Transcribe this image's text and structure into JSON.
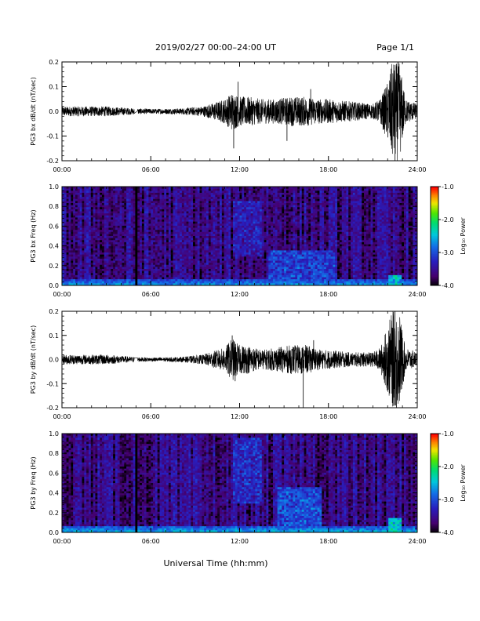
{
  "header": {
    "title": "2019/02/27  00:00–24:00 UT",
    "page": "Page 1/1"
  },
  "xlabel": "Universal Time (hh:mm)",
  "colorbar": {
    "label": "Log₁₀ Power",
    "range": [
      -4.0,
      -1.0
    ],
    "ticks": [
      "-1.0",
      "-2.0",
      "-3.0",
      "-4.0"
    ]
  },
  "chart_data": [
    {
      "type": "line",
      "ylabel": "PG3 bx dB/dt (nT/sec)",
      "xlim": [
        0,
        24
      ],
      "ylim": [
        -0.2,
        0.2
      ],
      "xticks": [
        "00:00",
        "06:00",
        "12:00",
        "18:00",
        "24:00"
      ],
      "yticks": [
        "0.2",
        "0.1",
        "0.0",
        "-0.1",
        "-0.2"
      ],
      "gap": [
        4.9,
        5.1
      ],
      "envelope": {
        "x": [
          0,
          3,
          5,
          6,
          8,
          9.5,
          11,
          11.5,
          12,
          12.5,
          13.5,
          14.5,
          15.5,
          16.5,
          17.5,
          18,
          19.5,
          21,
          21.5,
          22,
          22.3,
          22.8,
          23.2,
          24
        ],
        "amp": [
          0.02,
          0.02,
          0.012,
          0.01,
          0.012,
          0.02,
          0.05,
          0.08,
          0.06,
          0.06,
          0.05,
          0.05,
          0.06,
          0.06,
          0.05,
          0.05,
          0.04,
          0.03,
          0.05,
          0.12,
          0.2,
          0.2,
          0.05,
          0.03
        ]
      },
      "spikes": [
        {
          "x": 11.6,
          "y": -0.15
        },
        {
          "x": 11.9,
          "y": 0.12
        },
        {
          "x": 15.2,
          "y": -0.12
        },
        {
          "x": 16.8,
          "y": 0.09
        },
        {
          "x": 22.5,
          "y": -0.2
        },
        {
          "x": 22.7,
          "y": 0.2
        }
      ]
    },
    {
      "type": "heatmap",
      "ylabel": "PG3 bx Freq (Hz)",
      "xlim": [
        0,
        24
      ],
      "ylim": [
        0,
        1.0
      ],
      "xticks": [
        "00:00",
        "06:00",
        "12:00",
        "18:00",
        "24:00"
      ],
      "yticks": [
        "1.0",
        "0.8",
        "0.6",
        "0.4",
        "0.2",
        "0.0"
      ],
      "colorbar_range": [
        -4.0,
        -1.0
      ],
      "dark_gap": [
        4.9,
        5.1
      ],
      "enhancements": [
        {
          "x": [
            11.5,
            13.5
          ],
          "f": [
            0.3,
            0.85
          ],
          "log_power": -3.1
        },
        {
          "x": [
            14.0,
            18.5
          ],
          "f": [
            0.0,
            0.35
          ],
          "log_power": -2.9
        },
        {
          "x": [
            22.0,
            23.0
          ],
          "f": [
            0.0,
            0.1
          ],
          "log_power": -2.3
        }
      ],
      "background_log_power": -3.6,
      "low_freq_log_power": -3.1
    },
    {
      "type": "line",
      "ylabel": "PG3 by dB/dt (nT/sec)",
      "xlim": [
        0,
        24
      ],
      "ylim": [
        -0.2,
        0.2
      ],
      "xticks": [
        "00:00",
        "06:00",
        "12:00",
        "18:00",
        "24:00"
      ],
      "yticks": [
        "0.2",
        "0.1",
        "0.0",
        "-0.1",
        "-0.2"
      ],
      "gap": [
        4.9,
        5.1
      ],
      "envelope": {
        "x": [
          0,
          3,
          5,
          6,
          8,
          9.5,
          11,
          11.5,
          12,
          12.5,
          13.5,
          14.5,
          15.5,
          16.5,
          17.5,
          18,
          19.5,
          21,
          21.5,
          22,
          22.3,
          22.8,
          23.2,
          24
        ],
        "amp": [
          0.02,
          0.02,
          0.01,
          0.008,
          0.01,
          0.02,
          0.05,
          0.09,
          0.06,
          0.06,
          0.04,
          0.05,
          0.06,
          0.06,
          0.04,
          0.04,
          0.03,
          0.03,
          0.05,
          0.14,
          0.2,
          0.2,
          0.05,
          0.03
        ]
      },
      "spikes": [
        {
          "x": 11.5,
          "y": 0.1
        },
        {
          "x": 11.7,
          "y": -0.09
        },
        {
          "x": 16.3,
          "y": -0.2
        },
        {
          "x": 17.0,
          "y": 0.08
        },
        {
          "x": 22.5,
          "y": 0.2
        },
        {
          "x": 22.6,
          "y": -0.2
        }
      ]
    },
    {
      "type": "heatmap",
      "ylabel": "PG3 by Freq (Hz)",
      "xlim": [
        0,
        24
      ],
      "ylim": [
        0,
        1.0
      ],
      "xticks": [
        "00:00",
        "06:00",
        "12:00",
        "18:00",
        "24:00"
      ],
      "yticks": [
        "1.0",
        "0.8",
        "0.6",
        "0.4",
        "0.2",
        "0.0"
      ],
      "colorbar_range": [
        -4.0,
        -1.0
      ],
      "dark_gap": [
        4.9,
        5.1
      ],
      "enhancements": [
        {
          "x": [
            11.5,
            13.5
          ],
          "f": [
            0.3,
            0.95
          ],
          "log_power": -3.0
        },
        {
          "x": [
            14.5,
            17.5
          ],
          "f": [
            0.05,
            0.45
          ],
          "log_power": -2.8
        },
        {
          "x": [
            22.0,
            23.0
          ],
          "f": [
            0.0,
            0.15
          ],
          "log_power": -2.2
        }
      ],
      "background_log_power": -3.6,
      "low_freq_log_power": -3.0
    }
  ]
}
